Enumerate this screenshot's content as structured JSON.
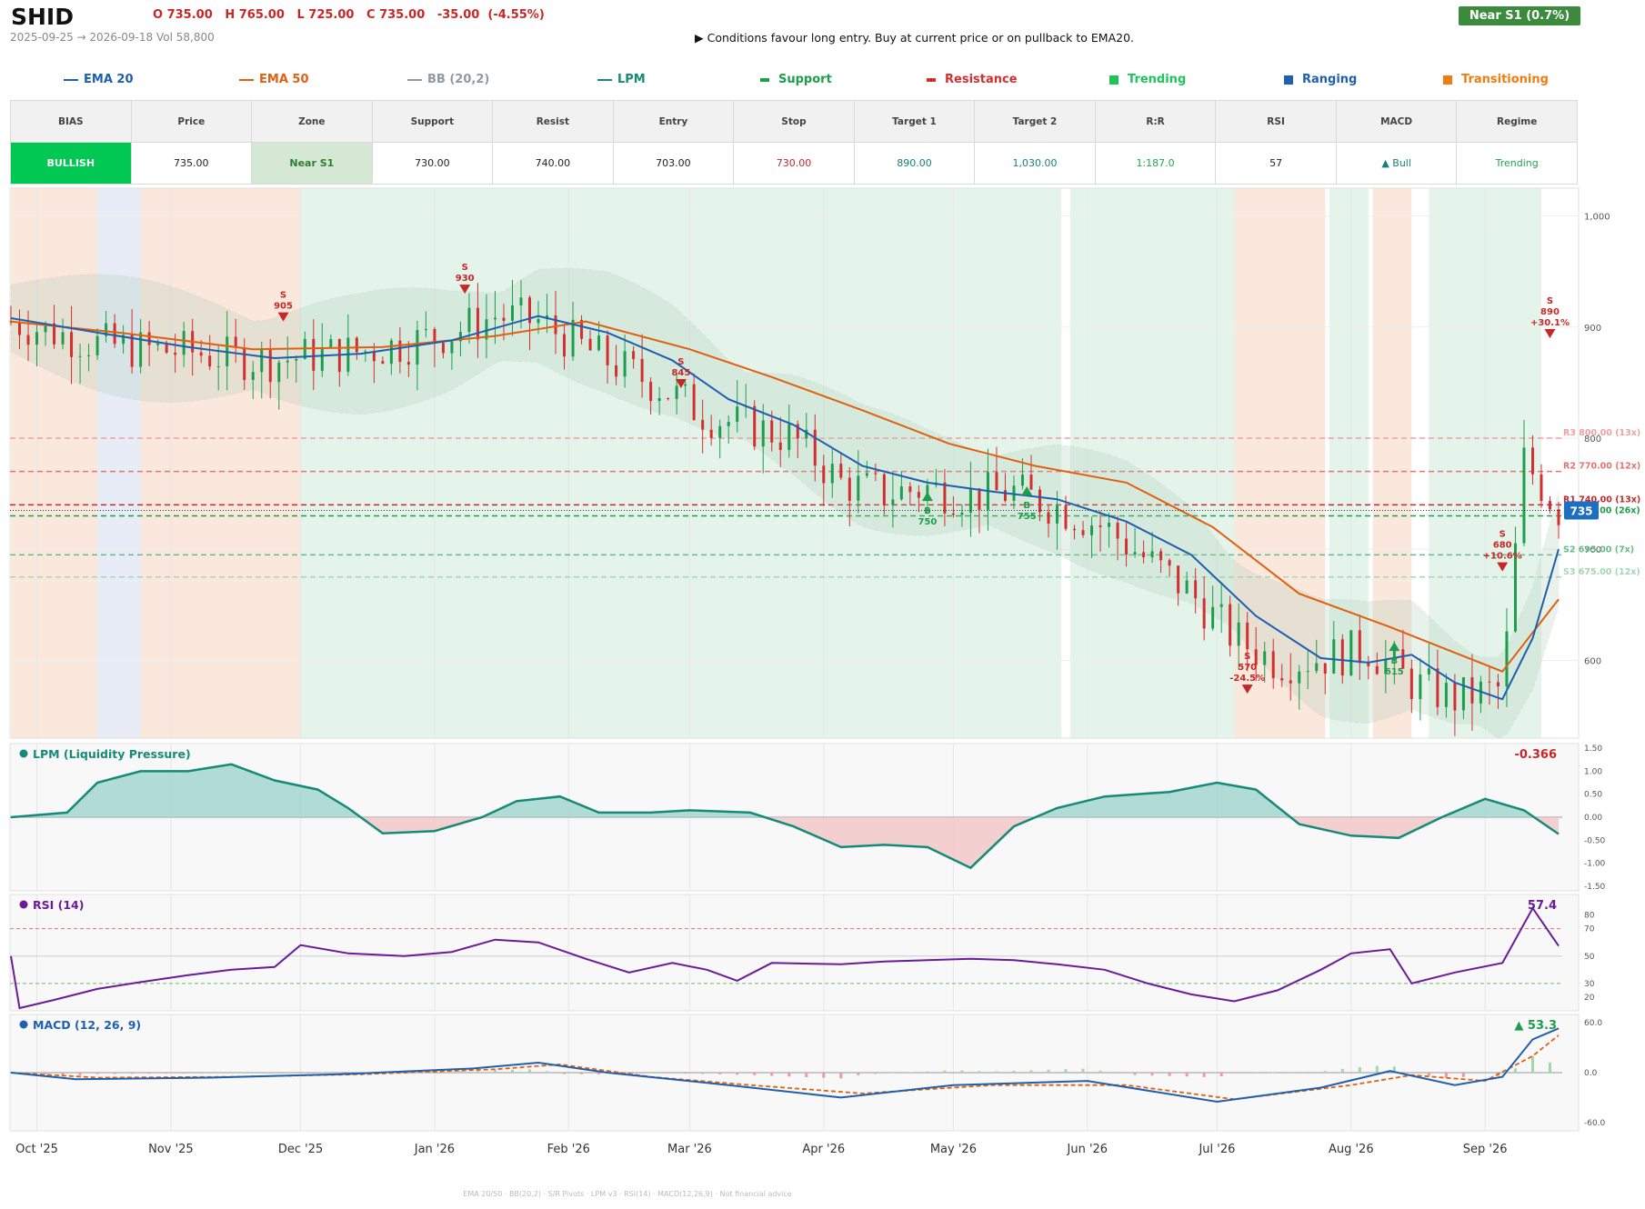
{
  "header": {
    "ticker": "SHID",
    "ohlc": "O 735.00   H 765.00   L 725.00   C 735.00   -35.00  (-4.55%)",
    "range": "2025-09-25 → 2026-09-18   Vol 58,800",
    "signal": "▶  Conditions favour long entry. Buy at current price or on pullback to EMA20.",
    "badge": "Near S1  (0.7%)"
  },
  "legend": [
    {
      "label": "EMA 20",
      "color": "#1f5fae",
      "kind": "line"
    },
    {
      "label": "EMA 50",
      "color": "#e06010",
      "kind": "line"
    },
    {
      "label": "BB (20,2)",
      "color": "#8d9aa3",
      "kind": "line"
    },
    {
      "label": "LPM",
      "color": "#168a78",
      "kind": "line"
    },
    {
      "label": "Support",
      "color": "#1e9e4c",
      "kind": "dash"
    },
    {
      "label": "Resistance",
      "color": "#d32f2f",
      "kind": "dash"
    },
    {
      "label": "Trending",
      "color": "#1fc35c",
      "kind": "box"
    },
    {
      "label": "Ranging",
      "color": "#1f5fae",
      "kind": "box"
    },
    {
      "label": "Transitioning",
      "color": "#ef7d12",
      "kind": "box"
    }
  ],
  "table": {
    "headers": [
      "BIAS",
      "Price",
      "Zone",
      "Support",
      "Resist",
      "Entry",
      "Stop",
      "Target 1",
      "Target 2",
      "R:R",
      "RSI",
      "MACD",
      "Regime"
    ],
    "values": [
      "BULLISH",
      "735.00",
      "Near S1",
      "730.00",
      "740.00",
      "703.00",
      "730.00",
      "890.00",
      "1,030.00",
      "1:187.0",
      "57",
      "▲ Bull",
      "Trending"
    ]
  },
  "colors": {
    "bull": "#1e9e4c",
    "bear": "#d32f2f",
    "ema20": "#1f5fae",
    "ema50": "#e06010",
    "lpm": "#168a78",
    "rsi": "#6a1b9a",
    "macd": "#1f5fae",
    "signal": "#e06010"
  },
  "chart_data": {
    "type": "candlestick",
    "x_ticks": [
      "Oct '25",
      "Nov '25",
      "Dec '25",
      "Jan '26",
      "Feb '26",
      "Mar '26",
      "Apr '26",
      "May '26",
      "Jun '26",
      "Jul '26",
      "Aug '26",
      "Sep '26"
    ],
    "price": {
      "ylim": [
        530,
        1025
      ],
      "y_ticks": [
        "1,000",
        "900",
        "800",
        "700",
        "600"
      ],
      "last_price_label": "735",
      "close_path": [
        [
          "2025-09-25",
          905
        ],
        [
          "2025-10-05",
          895
        ],
        [
          "2025-10-15",
          885
        ],
        [
          "2025-10-25",
          880
        ],
        [
          "2025-11-05",
          878
        ],
        [
          "2025-11-15",
          872
        ],
        [
          "2025-11-25",
          870
        ],
        [
          "2025-12-05",
          875
        ],
        [
          "2025-12-15",
          878
        ],
        [
          "2025-12-25",
          885
        ],
        [
          "2026-01-05",
          895
        ],
        [
          "2026-01-15",
          910
        ],
        [
          "2026-01-25",
          905
        ],
        [
          "2026-02-05",
          880
        ],
        [
          "2026-02-15",
          860
        ],
        [
          "2026-02-25",
          840
        ],
        [
          "2026-03-05",
          820
        ],
        [
          "2026-03-15",
          810
        ],
        [
          "2026-03-25",
          800
        ],
        [
          "2026-04-05",
          760
        ],
        [
          "2026-04-15",
          750
        ],
        [
          "2026-04-25",
          755
        ],
        [
          "2026-05-05",
          748
        ],
        [
          "2026-05-15",
          752
        ],
        [
          "2026-05-25",
          738
        ],
        [
          "2026-06-05",
          720
        ],
        [
          "2026-06-15",
          690
        ],
        [
          "2026-06-25",
          660
        ],
        [
          "2026-07-05",
          620
        ],
        [
          "2026-07-15",
          598
        ],
        [
          "2026-07-25",
          602
        ],
        [
          "2026-08-05",
          610
        ],
        [
          "2026-08-15",
          580
        ],
        [
          "2026-08-25",
          565
        ],
        [
          "2026-09-05",
          575
        ],
        [
          "2026-09-10",
          780
        ],
        [
          "2026-09-18",
          735
        ]
      ],
      "ema20": [
        [
          "2025-09-25",
          908
        ],
        [
          "2025-10-15",
          895
        ],
        [
          "2025-11-05",
          882
        ],
        [
          "2025-11-25",
          872
        ],
        [
          "2025-12-15",
          876
        ],
        [
          "2026-01-05",
          888
        ],
        [
          "2026-01-25",
          910
        ],
        [
          "2026-02-10",
          895
        ],
        [
          "2026-02-25",
          870
        ],
        [
          "2026-03-10",
          835
        ],
        [
          "2026-03-25",
          812
        ],
        [
          "2026-04-10",
          775
        ],
        [
          "2026-04-25",
          760
        ],
        [
          "2026-05-10",
          752
        ],
        [
          "2026-05-25",
          745
        ],
        [
          "2026-06-10",
          725
        ],
        [
          "2026-06-25",
          695
        ],
        [
          "2026-07-10",
          640
        ],
        [
          "2026-07-25",
          602
        ],
        [
          "2026-08-05",
          598
        ],
        [
          "2026-08-15",
          605
        ],
        [
          "2026-08-25",
          580
        ],
        [
          "2026-09-05",
          565
        ],
        [
          "2026-09-12",
          620
        ],
        [
          "2026-09-18",
          700
        ]
      ],
      "ema50": [
        [
          "2025-09-25",
          905
        ],
        [
          "2025-10-20",
          895
        ],
        [
          "2025-11-20",
          880
        ],
        [
          "2025-12-20",
          882
        ],
        [
          "2026-01-15",
          892
        ],
        [
          "2026-02-05",
          905
        ],
        [
          "2026-03-01",
          880
        ],
        [
          "2026-03-20",
          855
        ],
        [
          "2026-04-10",
          825
        ],
        [
          "2026-04-30",
          795
        ],
        [
          "2026-05-20",
          775
        ],
        [
          "2026-06-10",
          760
        ],
        [
          "2026-06-30",
          720
        ],
        [
          "2026-07-20",
          660
        ],
        [
          "2026-08-10",
          630
        ],
        [
          "2026-09-05",
          590
        ],
        [
          "2026-09-18",
          655
        ]
      ],
      "levels": [
        {
          "label": "R3 800.00 (13x)",
          "value": 800,
          "color": "#f0a0a0"
        },
        {
          "label": "R2 770.00 (12x)",
          "value": 770,
          "color": "#e57373"
        },
        {
          "label": "R1 740.00 (13x)",
          "value": 740,
          "color": "#c62828"
        },
        {
          "label": "S1 730.00 (26x)",
          "value": 730,
          "color": "#1e9e4c"
        },
        {
          "label": "S2 695.00 (7x)",
          "value": 695,
          "color": "#66bb8a"
        },
        {
          "label": "S3 675.00 (12x)",
          "value": 675,
          "color": "#a5d6b4"
        }
      ],
      "signals": [
        {
          "type": "S",
          "date": "2025-11-27",
          "price": 905,
          "text": [
            "S",
            "905"
          ]
        },
        {
          "type": "S",
          "date": "2026-01-08",
          "price": 930,
          "text": [
            "S",
            "930"
          ]
        },
        {
          "type": "S",
          "date": "2026-02-27",
          "price": 845,
          "text": [
            "S",
            "845"
          ]
        },
        {
          "type": "B",
          "date": "2026-04-25",
          "price": 750,
          "text": [
            "B",
            "750"
          ]
        },
        {
          "type": "B",
          "date": "2026-05-18",
          "price": 755,
          "text": [
            "B",
            "755"
          ]
        },
        {
          "type": "S",
          "date": "2026-07-08",
          "price": 570,
          "text": [
            "S",
            "570",
            "-24.5%"
          ]
        },
        {
          "type": "B",
          "date": "2026-08-11",
          "price": 615,
          "text": [
            "B",
            "615"
          ]
        },
        {
          "type": "S",
          "date": "2026-09-05",
          "price": 680,
          "text": [
            "S",
            "680",
            "+10.6%"
          ]
        },
        {
          "type": "S",
          "date": "2026-09-16",
          "price": 890,
          "text": [
            "S",
            "890",
            "+30.1%"
          ]
        }
      ],
      "regimes": [
        {
          "kind": "Transitioning",
          "from": "2025-09-25",
          "to": "2025-10-15"
        },
        {
          "kind": "Ranging",
          "from": "2025-10-15",
          "to": "2025-10-25"
        },
        {
          "kind": "Transitioning",
          "from": "2025-10-25",
          "to": "2025-12-01"
        },
        {
          "kind": "Trending",
          "from": "2025-12-01",
          "to": "2026-05-26"
        },
        {
          "kind": "Trending",
          "from": "2026-05-28",
          "to": "2026-07-05"
        },
        {
          "kind": "Transitioning",
          "from": "2026-07-05",
          "to": "2026-07-26"
        },
        {
          "kind": "Trending",
          "from": "2026-07-27",
          "to": "2026-08-05"
        },
        {
          "kind": "Transitioning",
          "from": "2026-08-06",
          "to": "2026-08-15"
        },
        {
          "kind": "Trending",
          "from": "2026-08-19",
          "to": "2026-09-14"
        }
      ]
    },
    "lpm": {
      "title": "LPM (Liquidity Pressure)",
      "last": "-0.366",
      "ylim": [
        -1.6,
        1.6
      ],
      "y_ticks": [
        "1.50",
        "1.00",
        "0.50",
        "0.00",
        "-0.50",
        "-1.00",
        "-1.50"
      ],
      "points": [
        [
          "2025-09-25",
          0.0
        ],
        [
          "2025-10-08",
          0.1
        ],
        [
          "2025-10-15",
          0.75
        ],
        [
          "2025-10-25",
          1.0
        ],
        [
          "2025-11-05",
          1.0
        ],
        [
          "2025-11-15",
          1.15
        ],
        [
          "2025-11-25",
          0.8
        ],
        [
          "2025-12-05",
          0.6
        ],
        [
          "2025-12-12",
          0.2
        ],
        [
          "2025-12-20",
          -0.35
        ],
        [
          "2026-01-01",
          -0.3
        ],
        [
          "2026-01-12",
          0.0
        ],
        [
          "2026-01-20",
          0.35
        ],
        [
          "2026-01-30",
          0.45
        ],
        [
          "2026-02-08",
          0.1
        ],
        [
          "2026-02-20",
          0.1
        ],
        [
          "2026-03-01",
          0.15
        ],
        [
          "2026-03-15",
          0.1
        ],
        [
          "2026-03-25",
          -0.2
        ],
        [
          "2026-04-05",
          -0.65
        ],
        [
          "2026-04-15",
          -0.6
        ],
        [
          "2026-04-25",
          -0.65
        ],
        [
          "2026-05-05",
          -1.1
        ],
        [
          "2026-05-15",
          -0.2
        ],
        [
          "2026-05-25",
          0.2
        ],
        [
          "2026-06-05",
          0.45
        ],
        [
          "2026-06-20",
          0.55
        ],
        [
          "2026-07-01",
          0.75
        ],
        [
          "2026-07-10",
          0.6
        ],
        [
          "2026-07-20",
          -0.15
        ],
        [
          "2026-08-01",
          -0.4
        ],
        [
          "2026-08-12",
          -0.45
        ],
        [
          "2026-08-22",
          0.0
        ],
        [
          "2026-09-01",
          0.4
        ],
        [
          "2026-09-10",
          0.15
        ],
        [
          "2026-09-18",
          -0.366
        ]
      ]
    },
    "rsi": {
      "title": "RSI (14)",
      "last": "57.4",
      "ylim": [
        10,
        95
      ],
      "y_ticks": [
        "80",
        "70",
        "50",
        "30",
        "20"
      ],
      "points": [
        [
          "2025-09-25",
          50
        ],
        [
          "2025-09-27",
          12
        ],
        [
          "2025-10-05",
          18
        ],
        [
          "2025-10-15",
          26
        ],
        [
          "2025-10-25",
          31
        ],
        [
          "2025-11-05",
          36
        ],
        [
          "2025-11-15",
          40
        ],
        [
          "2025-11-25",
          42
        ],
        [
          "2025-12-01",
          58
        ],
        [
          "2025-12-12",
          52
        ],
        [
          "2025-12-25",
          50
        ],
        [
          "2026-01-05",
          53
        ],
        [
          "2026-01-15",
          62
        ],
        [
          "2026-01-25",
          60
        ],
        [
          "2026-02-05",
          48
        ],
        [
          "2026-02-15",
          38
        ],
        [
          "2026-02-25",
          45
        ],
        [
          "2026-03-05",
          40
        ],
        [
          "2026-03-12",
          32
        ],
        [
          "2026-03-20",
          45
        ],
        [
          "2026-04-05",
          44
        ],
        [
          "2026-04-15",
          46
        ],
        [
          "2026-04-25",
          47
        ],
        [
          "2026-05-05",
          48
        ],
        [
          "2026-05-15",
          47
        ],
        [
          "2026-05-25",
          44
        ],
        [
          "2026-06-05",
          40
        ],
        [
          "2026-06-15",
          30
        ],
        [
          "2026-06-25",
          22
        ],
        [
          "2026-07-05",
          17
        ],
        [
          "2026-07-15",
          25
        ],
        [
          "2026-07-25",
          40
        ],
        [
          "2026-08-01",
          52
        ],
        [
          "2026-08-10",
          55
        ],
        [
          "2026-08-15",
          30
        ],
        [
          "2026-08-25",
          38
        ],
        [
          "2026-09-05",
          45
        ],
        [
          "2026-09-12",
          85
        ],
        [
          "2026-09-18",
          57.4
        ]
      ]
    },
    "macd": {
      "title": "MACD (12, 26, 9)",
      "last": "▲ 53.3",
      "ylim": [
        -70,
        70
      ],
      "y_ticks": [
        "60.0",
        "0.0",
        "-60.0"
      ],
      "macd_line": [
        [
          "2025-09-25",
          0
        ],
        [
          "2025-10-10",
          -8
        ],
        [
          "2025-11-10",
          -6
        ],
        [
          "2025-12-10",
          -2
        ],
        [
          "2026-01-10",
          5
        ],
        [
          "2026-01-25",
          12
        ],
        [
          "2026-02-10",
          0
        ],
        [
          "2026-03-10",
          -15
        ],
        [
          "2026-04-05",
          -30
        ],
        [
          "2026-05-01",
          -15
        ],
        [
          "2026-06-01",
          -10
        ],
        [
          "2026-07-01",
          -35
        ],
        [
          "2026-07-25",
          -18
        ],
        [
          "2026-08-10",
          2
        ],
        [
          "2026-08-25",
          -15
        ],
        [
          "2026-09-05",
          -5
        ],
        [
          "2026-09-12",
          40
        ],
        [
          "2026-09-18",
          53.3
        ]
      ],
      "signal_line": [
        [
          "2025-09-25",
          0
        ],
        [
          "2025-10-15",
          -6
        ],
        [
          "2025-11-15",
          -5
        ],
        [
          "2025-12-15",
          -2
        ],
        [
          "2026-01-15",
          4
        ],
        [
          "2026-01-30",
          10
        ],
        [
          "2026-02-20",
          -5
        ],
        [
          "2026-03-15",
          -15
        ],
        [
          "2026-04-10",
          -25
        ],
        [
          "2026-05-10",
          -15
        ],
        [
          "2026-06-10",
          -15
        ],
        [
          "2026-07-05",
          -32
        ],
        [
          "2026-08-01",
          -15
        ],
        [
          "2026-08-15",
          -3
        ],
        [
          "2026-09-01",
          -10
        ],
        [
          "2026-09-12",
          20
        ],
        [
          "2026-09-18",
          45
        ]
      ]
    },
    "footer": "EMA 20/50  ·  BB(20,2)  ·  S/R Pivots  ·  LPM v3  ·  RSI(14)  ·  MACD(12,26,9)  ·  Not financial advice"
  }
}
